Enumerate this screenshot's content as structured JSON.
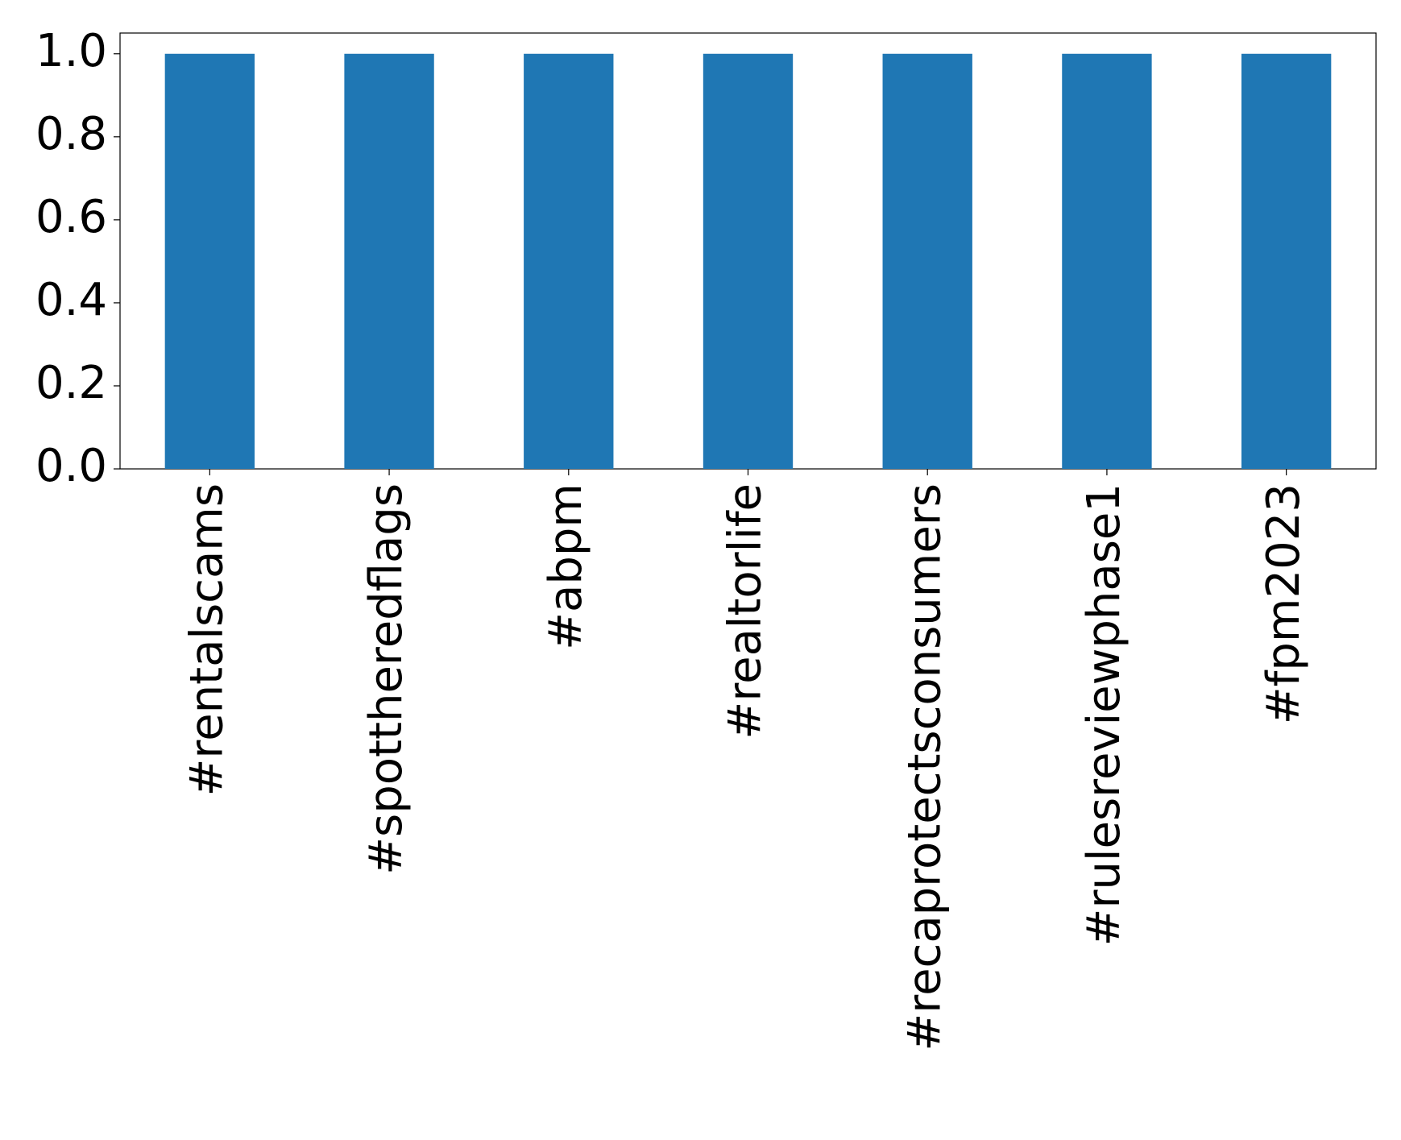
{
  "chart_data": {
    "type": "bar",
    "categories": [
      "#rentalscams",
      "#spottheredflags",
      "#abpm",
      "#realtorlife",
      "#recaprotectsconsumers",
      "#rulesreviewphase1",
      "#fpm2023"
    ],
    "values": [
      1,
      1,
      1,
      1,
      1,
      1,
      1
    ],
    "color": "#1f77b4",
    "ylim": [
      0,
      1.05
    ],
    "yticks": [
      {
        "value": 0,
        "label": "0.0"
      },
      0.2,
      0.4,
      0.6,
      0.8,
      {
        "value": 1,
        "label": "1.0"
      }
    ],
    "grid": false
  }
}
